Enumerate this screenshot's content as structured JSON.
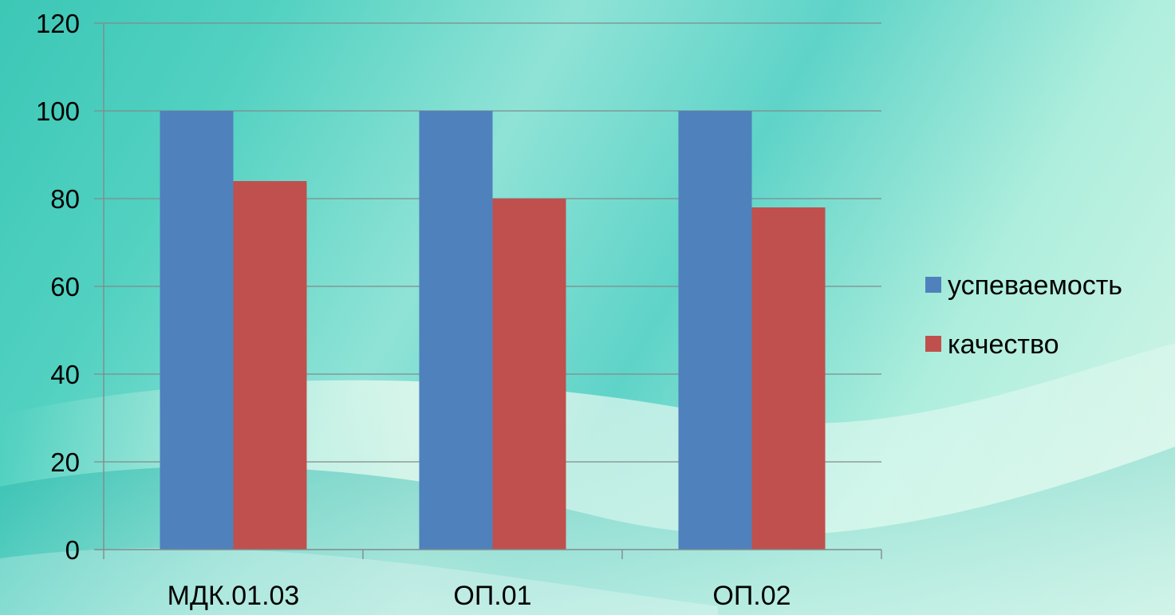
{
  "chart_data": {
    "type": "bar",
    "categories": [
      "МДК.01.03",
      "ОП.01",
      "ОП.02"
    ],
    "series": [
      {
        "name": "успеваемость",
        "values": [
          100,
          100,
          100
        ],
        "color": "#4f81bd"
      },
      {
        "name": "качество",
        "values": [
          84,
          80,
          78
        ],
        "color": "#c0504d"
      }
    ],
    "y_ticks": [
      "0",
      "20",
      "40",
      "60",
      "80",
      "100",
      "120"
    ],
    "ylim": [
      0,
      120
    ],
    "grid": true,
    "legend_position": "right"
  }
}
